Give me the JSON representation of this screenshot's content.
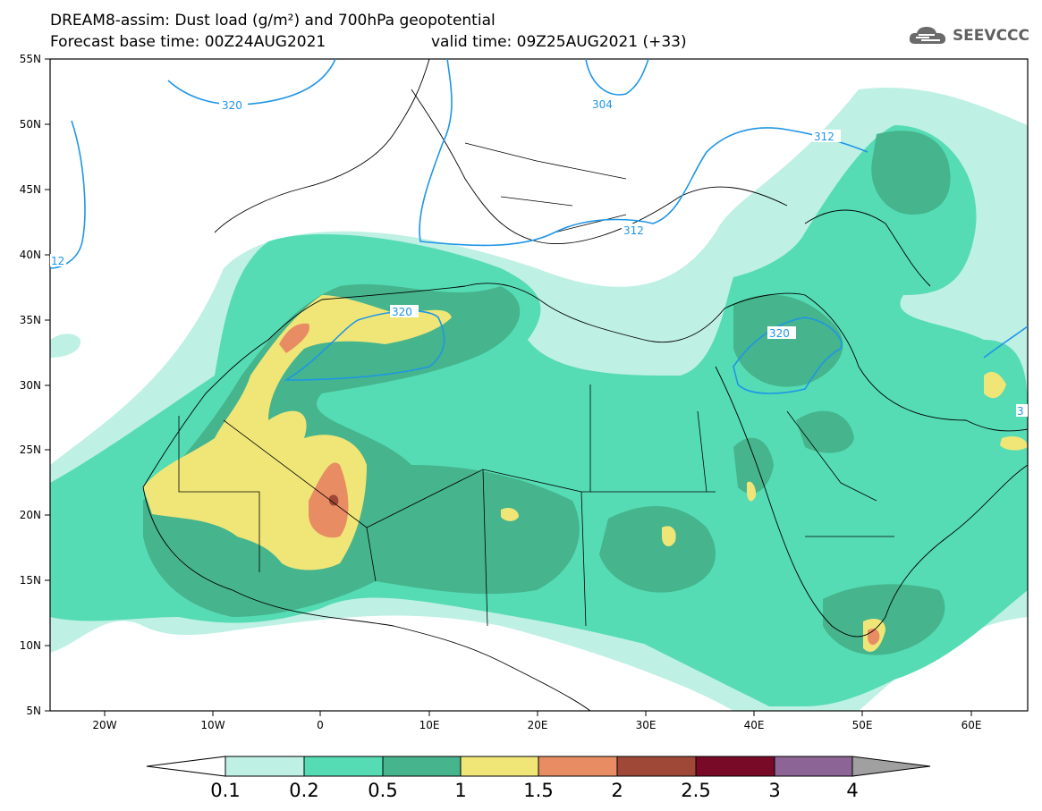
{
  "title_line1": "DREAM8-assim: Dust load (g/m²) and 700hPa geopotential",
  "title_line2": "Forecast base time: 00Z24AUG2021",
  "title_line3": "valid time: 09Z25AUG2021 (+33)",
  "logo_text": "SEEVCCC",
  "logo_icon": "cloud-icon",
  "map": {
    "lon_ticks": [
      "20W",
      "10W",
      "0",
      "10E",
      "20E",
      "30E",
      "40E",
      "50E",
      "60E"
    ],
    "lat_ticks": [
      "55N",
      "50N",
      "45N",
      "40N",
      "35N",
      "30N",
      "25N",
      "20N",
      "15N",
      "10N",
      "5N"
    ],
    "contour_labels": [
      "320",
      "304",
      "312",
      "312",
      "12",
      "320",
      "320",
      "3"
    ],
    "extent": {
      "lon": [
        -25,
        65
      ],
      "lat": [
        5,
        55
      ]
    }
  },
  "colorbar": {
    "labels": [
      "0.1",
      "0.2",
      "0.5",
      "1",
      "1.5",
      "2",
      "2.5",
      "3",
      "4"
    ],
    "colors": [
      "#bff0e4",
      "#55dcb4",
      "#46b48c",
      "#f0e678",
      "#e88c64",
      "#a04838",
      "#780a28",
      "#8c6496",
      "#a0a0a0"
    ]
  },
  "contour_color": "#1e96e6",
  "dust_colors": {
    "level1": "#bff0e4",
    "level2": "#55dcb4",
    "level3": "#46b48c",
    "level4": "#f0e678",
    "level5": "#e88c64",
    "level6": "#a04838",
    "level7": "#780a28"
  }
}
